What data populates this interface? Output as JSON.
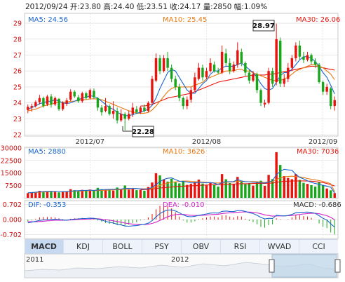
{
  "header": {
    "date": "2012/09/24",
    "open": "开:23.80",
    "high": "高:24.40",
    "low": "低:23.51",
    "close": "收:24.17",
    "volume": "量:2850",
    "change": "幅:1.09%"
  },
  "price_panel": {
    "ma5": "MA5: 24.56",
    "ma10": "MA10: 25.45",
    "ma30": "MA30: 26.06",
    "max_label": "28.97",
    "min_label": "22.28",
    "yticks": [
      "29",
      "28",
      "27",
      "26",
      "25",
      "24",
      "23",
      "22"
    ],
    "xticks": [
      "2012/07",
      "2012/08",
      "2012/09"
    ]
  },
  "volume_panel": {
    "ma5": "MA5: 2880",
    "ma10": "MA10: 3626",
    "ma30": "MA30: 7036",
    "yticks": [
      "30000",
      "22500",
      "15000",
      "7500"
    ]
  },
  "macd_panel": {
    "dif": "DIF: -0.353",
    "dea": "DEA: -0.010",
    "macd": "MACD: -0.686",
    "yticks": [
      "0.702",
      "0.000",
      "-0.702"
    ]
  },
  "tabs": [
    "MACD",
    "KDJ",
    "BOLL",
    "PSY",
    "OBV",
    "RSI",
    "WVAD",
    "CCI"
  ],
  "navigator": {
    "years": [
      "2011",
      "2012"
    ]
  },
  "colors": {
    "up": "#e8140d",
    "down": "#1aa61a",
    "ma5": "#1a66cc",
    "ma10": "#e87811",
    "ma30": "#e8140d",
    "dea": "#d424c8",
    "grid": "#d8d8d8"
  },
  "chart_data": [
    {
      "type": "candlestick",
      "ylim": [
        22,
        29.4
      ],
      "candles": [
        [
          23.55,
          23.75,
          23.35,
          23.9
        ],
        [
          23.7,
          23.8,
          23.45,
          23.95
        ],
        [
          23.8,
          24.05,
          23.7,
          24.15
        ],
        [
          24.05,
          24.3,
          23.9,
          24.5
        ],
        [
          24.3,
          23.8,
          23.7,
          24.4
        ],
        [
          23.9,
          24.4,
          23.8,
          24.5
        ],
        [
          24.4,
          23.9,
          23.7,
          24.55
        ],
        [
          23.9,
          24.3,
          23.8,
          24.4
        ],
        [
          24.25,
          23.6,
          23.5,
          24.3
        ],
        [
          23.6,
          24.0,
          23.5,
          24.1
        ],
        [
          23.95,
          24.15,
          23.8,
          24.3
        ],
        [
          24.2,
          24.7,
          24.1,
          24.85
        ],
        [
          24.7,
          24.4,
          24.3,
          24.8
        ],
        [
          24.35,
          24.1,
          24.0,
          24.5
        ],
        [
          24.1,
          24.6,
          24.0,
          24.7
        ],
        [
          24.6,
          24.3,
          24.2,
          24.7
        ],
        [
          24.3,
          24.8,
          24.2,
          24.9
        ],
        [
          24.75,
          24.35,
          24.25,
          24.9
        ],
        [
          24.3,
          23.7,
          23.5,
          24.35
        ],
        [
          23.7,
          23.4,
          23.2,
          23.85
        ],
        [
          23.5,
          23.8,
          23.4,
          24.3
        ],
        [
          23.8,
          23.3,
          23.2,
          23.9
        ],
        [
          23.3,
          23.5,
          23.0,
          24.1
        ],
        [
          23.5,
          22.9,
          22.7,
          23.7
        ],
        [
          22.9,
          23.3,
          22.8,
          23.6
        ],
        [
          23.3,
          23.0,
          22.28,
          23.4
        ],
        [
          23.0,
          23.3,
          22.9,
          23.5
        ],
        [
          23.3,
          23.7,
          23.1,
          24.0
        ],
        [
          23.6,
          23.4,
          23.3,
          23.8
        ],
        [
          23.4,
          23.7,
          23.3,
          23.8
        ],
        [
          23.7,
          23.5,
          23.4,
          23.9
        ],
        [
          23.5,
          24.0,
          23.4,
          24.1
        ],
        [
          24.0,
          25.5,
          23.9,
          25.7
        ],
        [
          25.4,
          26.8,
          25.3,
          27.1
        ],
        [
          26.8,
          26.0,
          25.8,
          27.0
        ],
        [
          26.0,
          26.8,
          25.9,
          27.0
        ],
        [
          26.8,
          26.2,
          26.0,
          27.2
        ],
        [
          26.2,
          25.5,
          25.3,
          26.4
        ],
        [
          25.5,
          25.0,
          24.8,
          25.7
        ],
        [
          25.0,
          24.3,
          24.1,
          25.2
        ],
        [
          24.3,
          23.8,
          23.6,
          24.4
        ],
        [
          23.8,
          24.2,
          23.6,
          24.4
        ],
        [
          24.2,
          24.8,
          24.0,
          25.0
        ],
        [
          24.8,
          25.6,
          24.7,
          25.9
        ],
        [
          25.5,
          26.2,
          25.4,
          26.5
        ],
        [
          26.2,
          25.6,
          25.4,
          26.4
        ],
        [
          25.6,
          26.0,
          25.5,
          26.2
        ],
        [
          26.0,
          26.5,
          25.9,
          26.8
        ],
        [
          26.4,
          26.0,
          25.9,
          26.6
        ],
        [
          26.0,
          25.9,
          25.8,
          26.2
        ],
        [
          25.9,
          27.2,
          25.8,
          27.6
        ],
        [
          27.1,
          26.5,
          26.3,
          27.4
        ],
        [
          26.5,
          26.0,
          25.8,
          26.8
        ],
        [
          26.0,
          26.4,
          25.9,
          26.6
        ],
        [
          26.4,
          27.3,
          26.2,
          27.8
        ],
        [
          27.2,
          26.5,
          26.3,
          27.4
        ],
        [
          26.5,
          25.9,
          25.7,
          26.6
        ],
        [
          25.9,
          25.4,
          25.2,
          26.1
        ],
        [
          25.4,
          25.8,
          25.3,
          26.0
        ],
        [
          25.8,
          24.8,
          24.6,
          25.9
        ],
        [
          24.8,
          24.0,
          23.8,
          24.9
        ],
        [
          23.9,
          24.0,
          23.7,
          24.2
        ],
        [
          24.0,
          26.0,
          23.9,
          26.2
        ],
        [
          26.0,
          25.2,
          25.0,
          26.2
        ],
        [
          25.3,
          28.0,
          25.1,
          28.97
        ],
        [
          27.9,
          25.2,
          25.0,
          28.1
        ],
        [
          25.2,
          25.5,
          25.0,
          25.8
        ],
        [
          25.5,
          26.2,
          25.3,
          26.5
        ],
        [
          26.2,
          26.8,
          26.0,
          27.0
        ],
        [
          26.8,
          27.6,
          26.6,
          27.8
        ],
        [
          27.6,
          26.9,
          26.7,
          27.9
        ],
        [
          26.9,
          26.7,
          26.5,
          27.2
        ],
        [
          26.7,
          27.0,
          26.6,
          27.2
        ],
        [
          27.0,
          26.6,
          26.4,
          27.1
        ],
        [
          26.6,
          26.4,
          26.2,
          26.8
        ],
        [
          26.4,
          25.3,
          25.2,
          26.5
        ],
        [
          25.3,
          24.7,
          24.5,
          25.4
        ],
        [
          24.7,
          25.0,
          24.5,
          25.2
        ],
        [
          24.9,
          23.8,
          23.6,
          25.0
        ],
        [
          23.8,
          24.17,
          23.51,
          24.4
        ]
      ],
      "ma5": [
        23.6,
        23.7,
        23.8,
        23.95,
        24.0,
        24.1,
        24.1,
        24.2,
        24.1,
        24.0,
        23.95,
        24.0,
        24.1,
        24.2,
        24.3,
        24.35,
        24.45,
        24.4,
        24.3,
        24.1,
        23.9,
        23.7,
        23.6,
        23.4,
        23.3,
        23.2,
        23.2,
        23.25,
        23.35,
        23.4,
        23.5,
        23.6,
        23.85,
        24.3,
        24.9,
        25.4,
        25.9,
        26.1,
        26.0,
        25.6,
        25.2,
        24.8,
        24.6,
        24.6,
        24.9,
        25.2,
        25.4,
        25.8,
        26.0,
        26.0,
        26.2,
        26.3,
        26.3,
        26.3,
        26.4,
        26.5,
        26.3,
        26.1,
        25.9,
        25.6,
        25.2,
        24.9,
        24.8,
        24.9,
        25.3,
        25.7,
        25.9,
        25.9,
        26.1,
        26.4,
        26.7,
        26.9,
        26.9,
        26.8,
        26.6,
        26.3,
        25.9,
        25.6,
        25.1,
        24.56
      ],
      "ma10": [
        23.5,
        23.55,
        23.6,
        23.7,
        23.8,
        23.85,
        23.9,
        24.0,
        24.05,
        24.05,
        24.05,
        24.1,
        24.1,
        24.15,
        24.2,
        24.2,
        24.25,
        24.25,
        24.25,
        24.2,
        24.1,
        24.0,
        23.9,
        23.8,
        23.7,
        23.6,
        23.5,
        23.45,
        23.35,
        23.35,
        23.35,
        23.4,
        23.55,
        23.8,
        24.1,
        24.4,
        24.7,
        24.9,
        25.0,
        25.0,
        25.0,
        25.0,
        25.0,
        25.1,
        25.2,
        25.3,
        25.5,
        25.6,
        25.7,
        25.8,
        25.9,
        26.0,
        26.0,
        26.0,
        26.1,
        26.1,
        26.0,
        26.0,
        25.9,
        25.8,
        25.7,
        25.6,
        25.5,
        25.4,
        25.4,
        25.4,
        25.5,
        25.6,
        25.8,
        26.0,
        26.1,
        26.2,
        26.3,
        26.4,
        26.4,
        26.3,
        26.2,
        26.0,
        25.8,
        25.45
      ],
      "ma30": [
        null,
        null,
        null,
        null,
        null,
        null,
        null,
        null,
        null,
        null,
        null,
        null,
        null,
        null,
        null,
        null,
        null,
        null,
        null,
        null,
        null,
        null,
        null,
        null,
        null,
        null,
        null,
        null,
        null,
        23.8,
        23.8,
        23.85,
        23.9,
        24.0,
        24.1,
        24.2,
        24.3,
        24.35,
        24.4,
        24.45,
        24.5,
        24.55,
        24.6,
        24.7,
        24.8,
        24.9,
        25.0,
        25.1,
        25.2,
        25.3,
        25.35,
        25.4,
        25.45,
        25.5,
        25.55,
        25.6,
        25.65,
        25.7,
        25.75,
        25.75,
        25.75,
        25.75,
        25.8,
        25.8,
        25.85,
        25.9,
        25.95,
        26.0,
        26.05,
        26.1,
        26.15,
        26.2,
        26.25,
        26.3,
        26.3,
        26.25,
        26.2,
        26.15,
        26.1,
        26.06
      ]
    },
    {
      "type": "bar",
      "ylim": [
        0,
        30000
      ],
      "volumes": [
        2800,
        3100,
        3500,
        4200,
        3600,
        3900,
        4100,
        3800,
        3300,
        3500,
        3700,
        5200,
        4600,
        3900,
        4800,
        4100,
        5000,
        4500,
        6000,
        5200,
        4700,
        5300,
        4400,
        6200,
        5200,
        7400,
        4900,
        5800,
        4600,
        4800,
        4300,
        6500,
        9200,
        14800,
        13500,
        11000,
        9800,
        11500,
        9300,
        8700,
        10300,
        7800,
        8400,
        9600,
        11000,
        8600,
        7500,
        8900,
        7700,
        6800,
        14300,
        11200,
        8900,
        8100,
        12600,
        10300,
        8200,
        8900,
        7300,
        9100,
        10300,
        7200,
        13800,
        11300,
        27500,
        19800,
        13100,
        12000,
        11200,
        14300,
        10800,
        9000,
        8400,
        7600,
        6800,
        9300,
        7700,
        5600,
        4500,
        2850
      ],
      "ma5": [
        3000,
        3200,
        3400,
        3600,
        3800,
        3900,
        3900,
        3800,
        3800,
        3700,
        3700,
        4000,
        4200,
        4300,
        4400,
        4500,
        4600,
        4500,
        4700,
        4900,
        5000,
        5100,
        5100,
        5200,
        5300,
        5700,
        5600,
        5600,
        5600,
        5400,
        5200,
        5500,
        6300,
        8000,
        9800,
        11100,
        11800,
        12000,
        11000,
        10000,
        9900,
        9500,
        9000,
        9000,
        9400,
        9200,
        9000,
        9200,
        8800,
        8000,
        9200,
        9700,
        9700,
        9800,
        11000,
        10200,
        9700,
        9700,
        9400,
        9400,
        9000,
        8900,
        9500,
        10300,
        14000,
        15900,
        17200,
        16800,
        16600,
        14100,
        12300,
        11400,
        10300,
        9300,
        8600,
        8200,
        7500,
        7000,
        6400,
        2880
      ],
      "ma10": [
        3000,
        3100,
        3200,
        3400,
        3500,
        3600,
        3700,
        3800,
        3800,
        3800,
        3800,
        3900,
        4000,
        4100,
        4100,
        4200,
        4300,
        4300,
        4400,
        4500,
        4600,
        4700,
        4800,
        4900,
        5000,
        5200,
        5300,
        5400,
        5500,
        5500,
        5400,
        5500,
        5800,
        6600,
        7500,
        8200,
        8800,
        9400,
        9600,
        9900,
        10000,
        10100,
        9900,
        9700,
        9600,
        9500,
        9300,
        9100,
        9000,
        8900,
        9100,
        9400,
        9500,
        9600,
        10000,
        9900,
        9800,
        9700,
        9800,
        9700,
        9500,
        9300,
        9600,
        9900,
        11000,
        12000,
        12600,
        12900,
        13000,
        12800,
        12600,
        12200,
        11600,
        11200,
        10800,
        10400,
        9900,
        9300,
        8500,
        3626
      ],
      "ma30": [
        null,
        null,
        null,
        null,
        null,
        null,
        null,
        null,
        null,
        null,
        null,
        null,
        null,
        null,
        null,
        null,
        null,
        null,
        null,
        null,
        null,
        null,
        null,
        null,
        null,
        null,
        null,
        null,
        null,
        4900,
        5000,
        5100,
        5300,
        5600,
        5900,
        6100,
        6300,
        6500,
        6700,
        6900,
        7000,
        7100,
        7200,
        7300,
        7500,
        7600,
        7700,
        7800,
        7900,
        8000,
        8100,
        8200,
        8200,
        8300,
        8400,
        8500,
        8500,
        8500,
        8600,
        8700,
        8700,
        8700,
        8800,
        8900,
        9400,
        9700,
        9900,
        10000,
        10100,
        10200,
        10200,
        10200,
        10100,
        10000,
        9800,
        9500,
        9200,
        8600,
        8000,
        7036
      ]
    },
    {
      "type": "line",
      "ylim": [
        -0.85,
        0.85
      ],
      "dif": [
        -0.15,
        -0.12,
        -0.08,
        -0.04,
        -0.02,
        0.0,
        0.01,
        0.02,
        0.0,
        -0.02,
        -0.03,
        0.0,
        0.02,
        0.03,
        0.05,
        0.05,
        0.07,
        0.06,
        0.02,
        -0.03,
        -0.08,
        -0.13,
        -0.16,
        -0.22,
        -0.25,
        -0.3,
        -0.31,
        -0.29,
        -0.28,
        -0.25,
        -0.22,
        -0.17,
        -0.05,
        0.12,
        0.28,
        0.38,
        0.44,
        0.45,
        0.4,
        0.32,
        0.22,
        0.15,
        0.13,
        0.15,
        0.2,
        0.23,
        0.26,
        0.3,
        0.31,
        0.3,
        0.38,
        0.4,
        0.38,
        0.37,
        0.42,
        0.42,
        0.38,
        0.32,
        0.28,
        0.2,
        0.1,
        0.03,
        0.06,
        0.05,
        0.2,
        0.18,
        0.17,
        0.19,
        0.24,
        0.32,
        0.34,
        0.34,
        0.35,
        0.33,
        0.29,
        0.18,
        0.06,
        -0.02,
        -0.2,
        -0.353
      ],
      "dea": [
        -0.1,
        -0.1,
        -0.1,
        -0.09,
        -0.08,
        -0.06,
        -0.05,
        -0.03,
        -0.03,
        -0.03,
        -0.03,
        -0.02,
        -0.01,
        0.0,
        0.01,
        0.02,
        0.03,
        0.04,
        0.04,
        0.02,
        0.0,
        -0.03,
        -0.06,
        -0.09,
        -0.12,
        -0.16,
        -0.19,
        -0.21,
        -0.22,
        -0.23,
        -0.23,
        -0.22,
        -0.18,
        -0.12,
        -0.04,
        0.05,
        0.13,
        0.19,
        0.23,
        0.25,
        0.24,
        0.22,
        0.2,
        0.19,
        0.19,
        0.2,
        0.21,
        0.23,
        0.24,
        0.25,
        0.28,
        0.3,
        0.31,
        0.32,
        0.34,
        0.35,
        0.36,
        0.35,
        0.34,
        0.31,
        0.27,
        0.22,
        0.19,
        0.16,
        0.17,
        0.17,
        0.17,
        0.18,
        0.19,
        0.22,
        0.24,
        0.26,
        0.28,
        0.29,
        0.29,
        0.27,
        0.23,
        0.18,
        0.1,
        -0.01
      ],
      "macd": [
        -0.1,
        -0.04,
        0.04,
        0.1,
        0.12,
        0.12,
        0.12,
        0.1,
        0.06,
        0.02,
        0.0,
        0.04,
        0.06,
        0.06,
        0.08,
        0.06,
        0.08,
        0.04,
        -0.04,
        -0.1,
        -0.16,
        -0.2,
        -0.2,
        -0.26,
        -0.26,
        -0.28,
        -0.24,
        -0.16,
        -0.12,
        -0.04,
        0.02,
        0.1,
        0.26,
        0.48,
        0.64,
        0.66,
        0.62,
        0.52,
        0.34,
        0.14,
        -0.04,
        -0.14,
        -0.14,
        -0.08,
        0.02,
        0.06,
        0.1,
        0.14,
        0.14,
        0.1,
        0.2,
        0.2,
        0.14,
        0.1,
        0.16,
        0.14,
        0.04,
        -0.06,
        -0.12,
        -0.22,
        -0.34,
        -0.38,
        -0.26,
        -0.22,
        0.06,
        0.02,
        0.0,
        0.02,
        0.1,
        0.2,
        0.2,
        0.16,
        0.14,
        0.08,
        0.0,
        -0.18,
        -0.34,
        -0.4,
        -0.6,
        -0.686
      ]
    }
  ]
}
